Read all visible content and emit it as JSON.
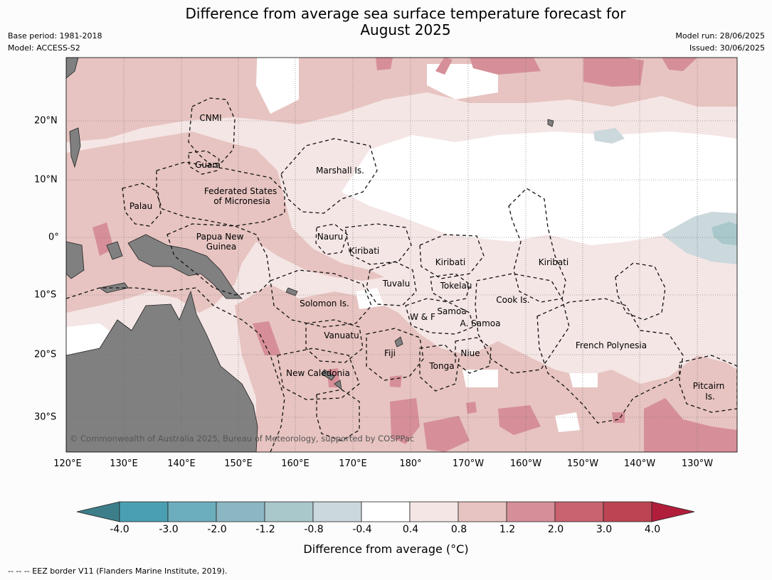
{
  "title": {
    "line1": "Difference from average sea surface temperature forecast for",
    "line2": "August 2025"
  },
  "meta": {
    "base_period": "Base period: 1981-2018",
    "model": "Model: ACCESS-S2",
    "model_run": "Model run: 28/06/2025",
    "issued": "Issued: 30/06/2025"
  },
  "map": {
    "copyright": "© Commonwealth of Australia 2025, Bureau of Meteorology, supported by COSPPac",
    "longitude_labels": [
      "120°E",
      "130°E",
      "140°E",
      "150°E",
      "160°E",
      "170°E",
      "180°",
      "170°W",
      "160°W",
      "150°W",
      "140°W",
      "130°W"
    ],
    "latitude_labels": [
      "20°N",
      "10°N",
      "0°",
      "10°S",
      "20°S",
      "30°S"
    ],
    "eez_labels": [
      {
        "lines": [
          "CNMI"
        ]
      },
      {
        "lines": [
          "Guam"
        ]
      },
      {
        "lines": [
          "Marshall Is."
        ]
      },
      {
        "lines": [
          "Federated States",
          "of Micronesia"
        ]
      },
      {
        "lines": [
          "Palau"
        ]
      },
      {
        "lines": [
          "Papua New",
          "Guinea"
        ]
      },
      {
        "lines": [
          "Nauru"
        ]
      },
      {
        "lines": [
          "Kiribati"
        ]
      },
      {
        "lines": [
          "Kiribati"
        ]
      },
      {
        "lines": [
          "Kiribati"
        ]
      },
      {
        "lines": [
          "Tuvalu"
        ]
      },
      {
        "lines": [
          "Tokelau"
        ]
      },
      {
        "lines": [
          "Cook Is."
        ]
      },
      {
        "lines": [
          "Solomon Is."
        ]
      },
      {
        "lines": [
          "W & F"
        ]
      },
      {
        "lines": [
          "Samoa"
        ]
      },
      {
        "lines": [
          "A. Samoa"
        ]
      },
      {
        "lines": [
          "Vanuatu"
        ]
      },
      {
        "lines": [
          "Fiji"
        ]
      },
      {
        "lines": [
          "Niue"
        ]
      },
      {
        "lines": [
          "French Polynesia"
        ]
      },
      {
        "lines": [
          "Tonga"
        ]
      },
      {
        "lines": [
          "New Caledonia"
        ]
      },
      {
        "lines": [
          "Pitcairn",
          "Is."
        ]
      }
    ],
    "colors": {
      "land": "#808080",
      "ocean_neutral": "#ffffff",
      "warm_0.4_0.8": "#f4e6e5",
      "warm_0.8_1.2": "#e7c4c1",
      "warm_1.2_2.0": "#d68f98"
    }
  },
  "colorbar": {
    "title": "Difference from average (°C)",
    "tick_labels": [
      "-4.0",
      "-3.0",
      "-2.0",
      "-1.2",
      "-0.8",
      "-0.4",
      "0.4",
      "0.8",
      "1.2",
      "2.0",
      "3.0",
      "4.0"
    ],
    "bins": [
      {
        "range": "< -4.0",
        "color": "#3c7f8a"
      },
      {
        "range": "-4.0 to -3.0",
        "color": "#4aa0b2"
      },
      {
        "range": "-3.0 to -2.0",
        "color": "#6caebd"
      },
      {
        "range": "-2.0 to -1.2",
        "color": "#8bb7c2"
      },
      {
        "range": "-1.2 to -0.8",
        "color": "#a9c8cb"
      },
      {
        "range": "-0.8 to -0.4",
        "color": "#cbd8dc"
      },
      {
        "range": "-0.4 to 0.4",
        "color": "#ffffff"
      },
      {
        "range": "0.4 to 0.8",
        "color": "#f4e6e5"
      },
      {
        "range": "0.8 to 1.2",
        "color": "#e7c4c1"
      },
      {
        "range": "1.2 to 2.0",
        "color": "#d68f98"
      },
      {
        "range": "2.0 to 3.0",
        "color": "#c9636f"
      },
      {
        "range": "3.0 to 4.0",
        "color": "#bc4553"
      },
      {
        "range": "> 4.0",
        "color": "#b11e3b"
      }
    ]
  },
  "footnote": "--  --  -- EEZ border V11 (Flanders Marine Institute, 2019)."
}
